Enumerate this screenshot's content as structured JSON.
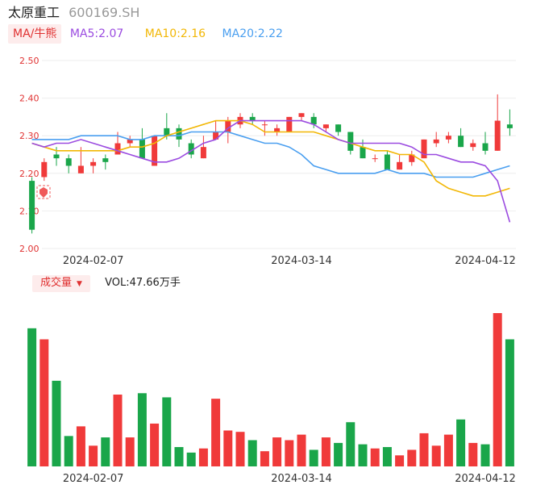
{
  "header": {
    "name": "太原重工",
    "code": "600169.SH"
  },
  "legend": {
    "indicator_label": "MA/牛熊",
    "ma5": "MA5:2.07",
    "ma10": "MA10:2.16",
    "ma20": "MA20:2.22"
  },
  "colors": {
    "up": "#f03a3a",
    "down": "#1aa64a",
    "ma5": "#9b4be0",
    "ma10": "#f2b705",
    "ma20": "#4a9ff0",
    "axis_text": "#e03131"
  },
  "volume_header": {
    "label": "成交量",
    "value": "VOL:47.66万手"
  },
  "chart_data": {
    "type": "candlestick",
    "price_axis": {
      "ylim": [
        2.0,
        2.5
      ],
      "ticks": [
        "2.00",
        "2.10",
        "2.20",
        "2.30",
        "2.40",
        "2.50"
      ]
    },
    "date_ticks": [
      {
        "index": 5,
        "label": "2024-02-07"
      },
      {
        "index": 22,
        "label": "2024-03-14"
      },
      {
        "index": 37,
        "label": "2024-04-12"
      }
    ],
    "candles": [
      {
        "o": 2.18,
        "h": 2.19,
        "l": 2.04,
        "c": 2.05
      },
      {
        "o": 2.19,
        "h": 2.24,
        "l": 2.18,
        "c": 2.23
      },
      {
        "o": 2.25,
        "h": 2.27,
        "l": 2.22,
        "c": 2.24
      },
      {
        "o": 2.24,
        "h": 2.25,
        "l": 2.2,
        "c": 2.22
      },
      {
        "o": 2.2,
        "h": 2.27,
        "l": 2.2,
        "c": 2.22
      },
      {
        "o": 2.22,
        "h": 2.24,
        "l": 2.2,
        "c": 2.23
      },
      {
        "o": 2.24,
        "h": 2.25,
        "l": 2.21,
        "c": 2.23
      },
      {
        "o": 2.25,
        "h": 2.31,
        "l": 2.25,
        "c": 2.28
      },
      {
        "o": 2.28,
        "h": 2.3,
        "l": 2.27,
        "c": 2.29
      },
      {
        "o": 2.29,
        "h": 2.32,
        "l": 2.24,
        "c": 2.24
      },
      {
        "o": 2.22,
        "h": 2.3,
        "l": 2.22,
        "c": 2.3
      },
      {
        "o": 2.32,
        "h": 2.36,
        "l": 2.29,
        "c": 2.3
      },
      {
        "o": 2.32,
        "h": 2.33,
        "l": 2.27,
        "c": 2.29
      },
      {
        "o": 2.28,
        "h": 2.29,
        "l": 2.24,
        "c": 2.25
      },
      {
        "o": 2.24,
        "h": 2.3,
        "l": 2.24,
        "c": 2.27
      },
      {
        "o": 2.29,
        "h": 2.34,
        "l": 2.29,
        "c": 2.31
      },
      {
        "o": 2.31,
        "h": 2.35,
        "l": 2.28,
        "c": 2.34
      },
      {
        "o": 2.33,
        "h": 2.36,
        "l": 2.32,
        "c": 2.35
      },
      {
        "o": 2.35,
        "h": 2.36,
        "l": 2.33,
        "c": 2.34
      },
      {
        "o": 2.33,
        "h": 2.34,
        "l": 2.3,
        "c": 2.33
      },
      {
        "o": 2.31,
        "h": 2.33,
        "l": 2.3,
        "c": 2.32
      },
      {
        "o": 2.31,
        "h": 2.35,
        "l": 2.31,
        "c": 2.35
      },
      {
        "o": 2.35,
        "h": 2.36,
        "l": 2.34,
        "c": 2.36
      },
      {
        "o": 2.35,
        "h": 2.36,
        "l": 2.32,
        "c": 2.33
      },
      {
        "o": 2.32,
        "h": 2.33,
        "l": 2.31,
        "c": 2.33
      },
      {
        "o": 2.33,
        "h": 2.33,
        "l": 2.3,
        "c": 2.31
      },
      {
        "o": 2.31,
        "h": 2.31,
        "l": 2.25,
        "c": 2.26
      },
      {
        "o": 2.27,
        "h": 2.29,
        "l": 2.24,
        "c": 2.24
      },
      {
        "o": 2.24,
        "h": 2.25,
        "l": 2.23,
        "c": 2.24
      },
      {
        "o": 2.25,
        "h": 2.26,
        "l": 2.21,
        "c": 2.21
      },
      {
        "o": 2.21,
        "h": 2.25,
        "l": 2.21,
        "c": 2.23
      },
      {
        "o": 2.23,
        "h": 2.26,
        "l": 2.22,
        "c": 2.25
      },
      {
        "o": 2.24,
        "h": 2.29,
        "l": 2.24,
        "c": 2.29
      },
      {
        "o": 2.28,
        "h": 2.31,
        "l": 2.27,
        "c": 2.29
      },
      {
        "o": 2.29,
        "h": 2.31,
        "l": 2.28,
        "c": 2.3
      },
      {
        "o": 2.3,
        "h": 2.32,
        "l": 2.27,
        "c": 2.27
      },
      {
        "o": 2.27,
        "h": 2.29,
        "l": 2.26,
        "c": 2.28
      },
      {
        "o": 2.28,
        "h": 2.31,
        "l": 2.25,
        "c": 2.26
      },
      {
        "o": 2.26,
        "h": 2.41,
        "l": 2.26,
        "c": 2.34
      },
      {
        "o": 2.33,
        "h": 2.37,
        "l": 2.3,
        "c": 2.32
      }
    ],
    "ma5": [
      2.28,
      2.27,
      2.28,
      2.28,
      2.29,
      2.28,
      2.27,
      2.26,
      2.25,
      2.24,
      2.23,
      2.23,
      2.24,
      2.26,
      2.28,
      2.29,
      2.32,
      2.34,
      2.34,
      2.34,
      2.34,
      2.34,
      2.34,
      2.33,
      2.31,
      2.29,
      2.28,
      2.28,
      2.28,
      2.28,
      2.28,
      2.27,
      2.25,
      2.25,
      2.24,
      2.23,
      2.23,
      2.22,
      2.18,
      2.07
    ],
    "ma10": [
      2.28,
      2.27,
      2.26,
      2.26,
      2.26,
      2.26,
      2.26,
      2.26,
      2.27,
      2.27,
      2.28,
      2.3,
      2.31,
      2.32,
      2.33,
      2.34,
      2.34,
      2.34,
      2.33,
      2.31,
      2.31,
      2.31,
      2.31,
      2.31,
      2.3,
      2.29,
      2.28,
      2.27,
      2.26,
      2.26,
      2.25,
      2.25,
      2.23,
      2.18,
      2.16,
      2.15,
      2.14,
      2.14,
      2.15,
      2.16
    ],
    "ma20": [
      2.29,
      2.29,
      2.29,
      2.29,
      2.3,
      2.3,
      2.3,
      2.3,
      2.29,
      2.29,
      2.3,
      2.3,
      2.3,
      2.31,
      2.31,
      2.31,
      2.31,
      2.3,
      2.29,
      2.28,
      2.28,
      2.27,
      2.25,
      2.22,
      2.21,
      2.2,
      2.2,
      2.2,
      2.2,
      2.21,
      2.2,
      2.2,
      2.2,
      2.19,
      2.19,
      2.19,
      2.19,
      2.2,
      2.21,
      2.22
    ],
    "volume_ratio": [
      1.0,
      0.92,
      0.62,
      0.22,
      0.29,
      0.15,
      0.21,
      0.52,
      0.21,
      0.53,
      0.31,
      0.5,
      0.14,
      0.1,
      0.13,
      0.49,
      0.26,
      0.25,
      0.19,
      0.11,
      0.21,
      0.19,
      0.23,
      0.12,
      0.21,
      0.17,
      0.32,
      0.16,
      0.13,
      0.14,
      0.08,
      0.12,
      0.24,
      0.15,
      0.23,
      0.34,
      0.17,
      0.16,
      1.11,
      0.92
    ]
  }
}
